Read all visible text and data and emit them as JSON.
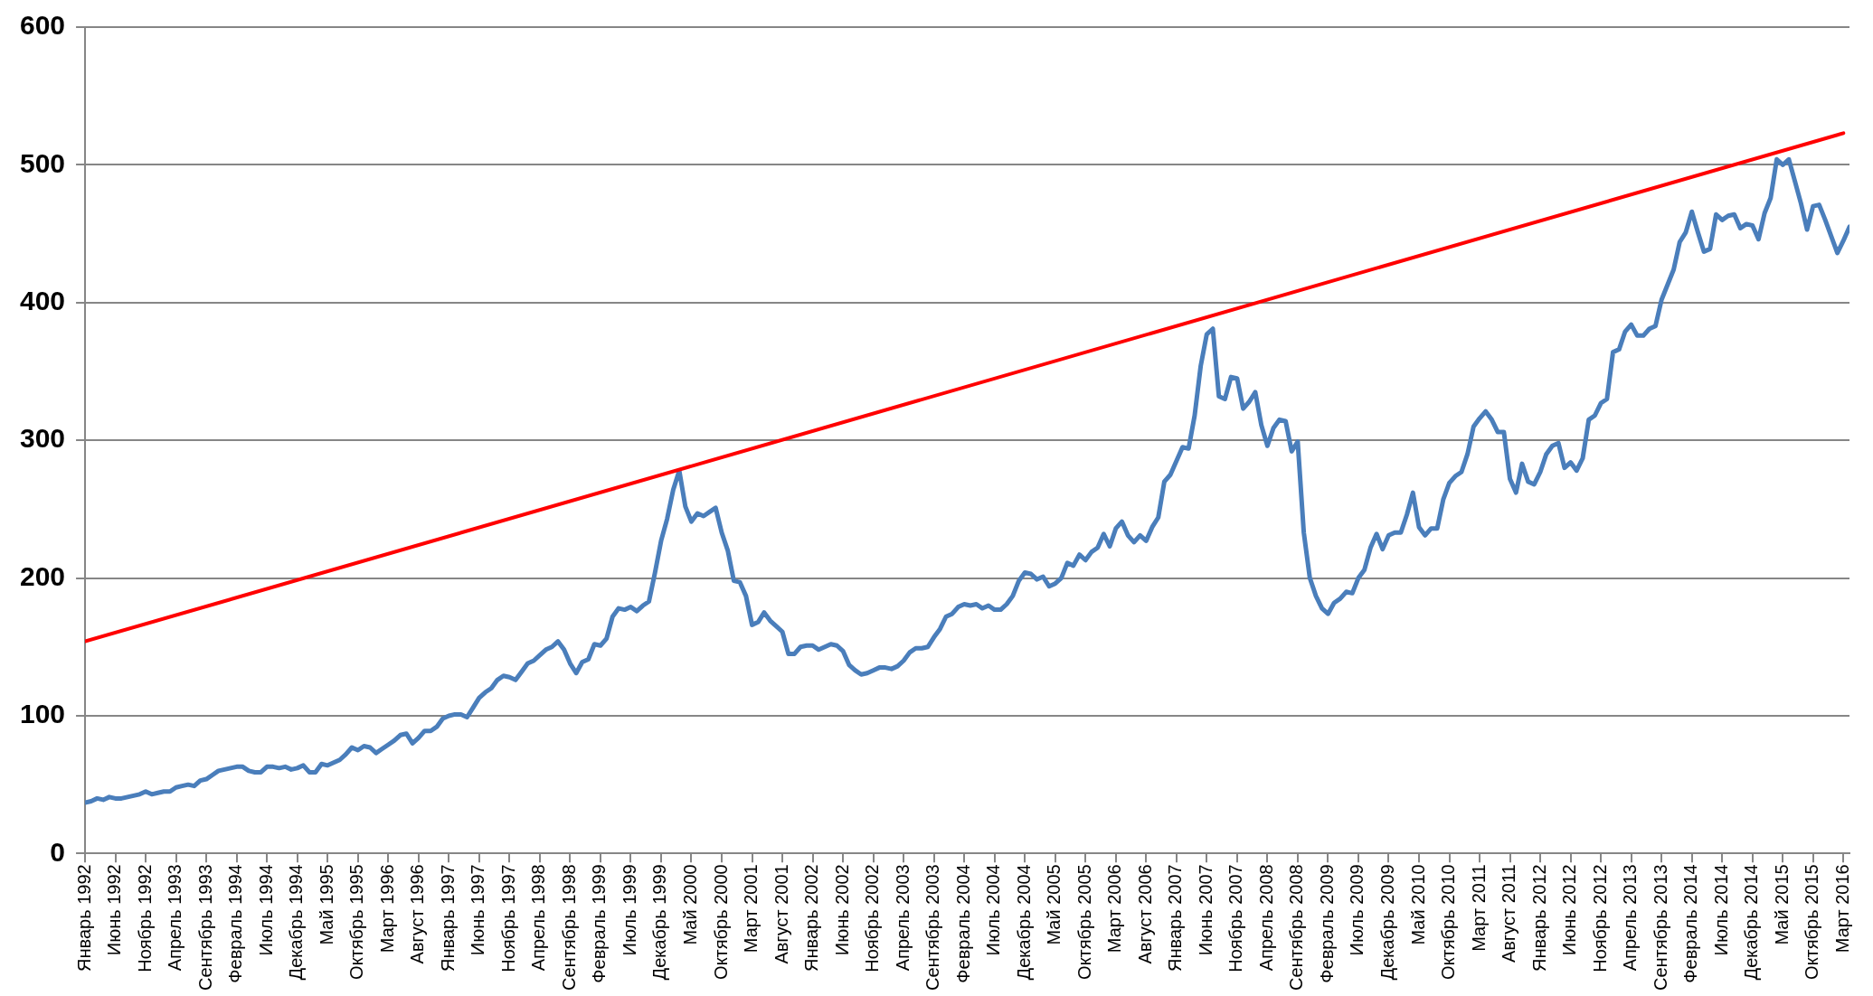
{
  "chart_data": {
    "type": "line",
    "categories": [
      "Январь 1992",
      null,
      null,
      null,
      null,
      "Июнь 1992",
      null,
      null,
      null,
      null,
      "Ноябрь 1992",
      null,
      null,
      null,
      null,
      "Апрель 1993",
      null,
      null,
      null,
      null,
      "Сентябрь 1993",
      null,
      null,
      null,
      null,
      "Февраль 1994",
      null,
      null,
      null,
      null,
      "Июль 1994",
      null,
      null,
      null,
      null,
      "Декабрь 1994",
      null,
      null,
      null,
      null,
      "Май 1995",
      null,
      null,
      null,
      null,
      "Октябрь 1995",
      null,
      null,
      null,
      null,
      "Март 1996",
      null,
      null,
      null,
      null,
      "Август 1996",
      null,
      null,
      null,
      null,
      "Январь 1997",
      null,
      null,
      null,
      null,
      "Июнь 1997",
      null,
      null,
      null,
      null,
      "Ноябрь 1997",
      null,
      null,
      null,
      null,
      "Апрель 1998",
      null,
      null,
      null,
      null,
      "Сентябрь 1998",
      null,
      null,
      null,
      null,
      "Февраль 1999",
      null,
      null,
      null,
      null,
      "Июль 1999",
      null,
      null,
      null,
      null,
      "Декабрь 1999",
      null,
      null,
      null,
      null,
      "Май 2000",
      null,
      null,
      null,
      null,
      "Октябрь 2000",
      null,
      null,
      null,
      null,
      "Март 2001",
      null,
      null,
      null,
      null,
      "Август 2001",
      null,
      null,
      null,
      null,
      "Январь 2002",
      null,
      null,
      null,
      null,
      "Июнь 2002",
      null,
      null,
      null,
      null,
      "Ноябрь 2002",
      null,
      null,
      null,
      null,
      "Апрель 2003",
      null,
      null,
      null,
      null,
      "Сентябрь 2003",
      null,
      null,
      null,
      null,
      "Февраль 2004",
      null,
      null,
      null,
      null,
      "Июль 2004",
      null,
      null,
      null,
      null,
      "Декабрь 2004",
      null,
      null,
      null,
      null,
      "Май 2005",
      null,
      null,
      null,
      null,
      "Октябрь 2005",
      null,
      null,
      null,
      null,
      "Март 2006",
      null,
      null,
      null,
      null,
      "Август 2006",
      null,
      null,
      null,
      null,
      "Январь 2007",
      null,
      null,
      null,
      null,
      "Июнь 2007",
      null,
      null,
      null,
      null,
      "Ноябрь 2007",
      null,
      null,
      null,
      null,
      "Апрель 2008",
      null,
      null,
      null,
      null,
      "Сентябрь 2008",
      null,
      null,
      null,
      null,
      "Февраль 2009",
      null,
      null,
      null,
      null,
      "Июль 2009",
      null,
      null,
      null,
      null,
      "Декабрь 2009",
      null,
      null,
      null,
      null,
      "Май 2010",
      null,
      null,
      null,
      null,
      "Октябрь 2010",
      null,
      null,
      null,
      null,
      "Март 2011",
      null,
      null,
      null,
      null,
      "Август 2011",
      null,
      null,
      null,
      null,
      "Январь 2012",
      null,
      null,
      null,
      null,
      "Июнь 2012",
      null,
      null,
      null,
      null,
      "Ноябрь 2012",
      null,
      null,
      null,
      null,
      "Апрель 2013",
      null,
      null,
      null,
      null,
      "Сентябрь 2013",
      null,
      null,
      null,
      null,
      "Февраль 2014",
      null,
      null,
      null,
      null,
      "Июль 2014",
      null,
      null,
      null,
      null,
      "Декабрь 2014",
      null,
      null,
      null,
      null,
      "Май 2015",
      null,
      null,
      null,
      null,
      "Октябрь 2015",
      null,
      null,
      null,
      null,
      "Март 2016",
      null
    ],
    "series": [
      {
        "color": "#4a7ebb",
        "values": [
          37,
          38,
          40,
          39,
          41,
          40,
          40,
          41,
          42,
          43,
          45,
          43,
          44,
          45,
          45,
          48,
          49,
          50,
          49,
          53,
          54,
          57,
          60,
          61,
          62,
          63,
          63,
          60,
          59,
          59,
          63,
          63,
          62,
          63,
          61,
          62,
          64,
          59,
          59,
          65,
          64,
          66,
          68,
          72,
          77,
          75,
          78,
          77,
          73,
          76,
          79,
          82,
          86,
          87,
          80,
          84,
          89,
          89,
          92,
          98,
          100,
          101,
          101,
          99,
          106,
          113,
          117,
          120,
          126,
          129,
          128,
          126,
          132,
          138,
          140,
          144,
          148,
          150,
          154,
          148,
          138,
          131,
          139,
          141,
          152,
          151,
          156,
          172,
          178,
          177,
          179,
          176,
          180,
          183,
          204,
          227,
          243,
          264,
          278,
          252,
          241,
          247,
          245,
          248,
          251,
          233,
          220,
          198,
          197,
          187,
          166,
          168,
          175,
          169,
          165,
          161,
          145,
          145,
          150,
          151,
          151,
          148,
          150,
          152,
          151,
          147,
          137,
          133,
          130,
          131,
          133,
          135,
          135,
          134,
          136,
          140,
          146,
          149,
          149,
          150,
          157,
          163,
          172,
          174,
          179,
          181,
          180,
          181,
          178,
          180,
          177,
          177,
          181,
          187,
          198,
          204,
          203,
          199,
          201,
          194,
          196,
          200,
          211,
          209,
          217,
          213,
          219,
          222,
          232,
          223,
          236,
          241,
          231,
          226,
          231,
          227,
          237,
          244,
          270,
          275,
          285,
          295,
          294,
          318,
          354,
          377,
          381,
          332,
          330,
          346,
          345,
          323,
          328,
          335,
          311,
          296,
          309,
          315,
          314,
          292,
          299,
          233,
          200,
          187,
          178,
          174,
          182,
          185,
          190,
          189,
          200,
          206,
          222,
          232,
          221,
          231,
          233,
          233,
          246,
          262,
          237,
          231,
          236,
          236,
          257,
          269,
          274,
          277,
          290,
          310,
          316,
          321,
          315,
          306,
          306,
          272,
          262,
          283,
          270,
          268,
          277,
          290,
          296,
          298,
          280,
          284,
          278,
          287,
          315,
          318,
          327,
          330,
          364,
          366,
          379,
          384,
          376,
          376,
          381,
          383,
          402,
          413,
          424,
          444,
          451,
          466,
          451,
          437,
          439,
          464,
          460,
          463,
          464,
          454,
          457,
          456,
          446,
          465,
          476,
          504,
          500,
          504,
          488,
          472,
          453,
          470,
          471,
          460,
          448,
          436,
          445,
          455
        ]
      },
      {
        "type": "line",
        "color": "#ff0000",
        "x": [
          "Январь 1992",
          "Март 2016"
        ],
        "values": [
          154,
          523
        ]
      }
    ],
    "ylim": [
      0,
      600
    ],
    "yticks": [
      0,
      100,
      200,
      300,
      400,
      500,
      600
    ],
    "grid": "y",
    "legend": false,
    "marker": "none",
    "line_style": "solid"
  }
}
